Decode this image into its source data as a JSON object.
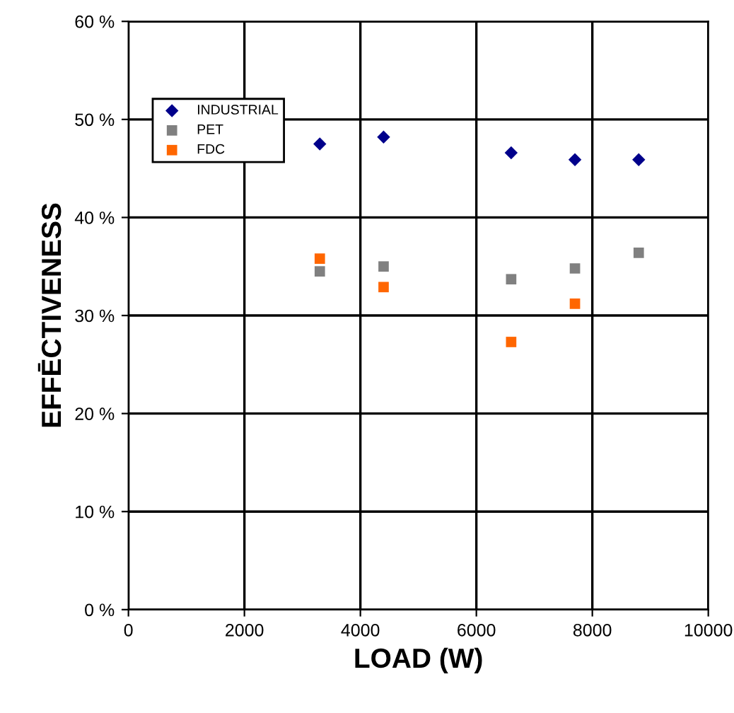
{
  "chart_data": {
    "type": "scatter",
    "xlabel": "LOAD (W)",
    "ylabel": "EFFĒCTIVENESS",
    "xlim": [
      0,
      10000
    ],
    "xticks": [
      0,
      2000,
      4000,
      6000,
      8000,
      10000
    ],
    "ylim": [
      0,
      60
    ],
    "yticks": [
      {
        "value": 0,
        "label": "0 %"
      },
      {
        "value": 10,
        "label": "10 %"
      },
      {
        "value": 20,
        "label": "20 %"
      },
      {
        "value": 30,
        "label": "30 %"
      },
      {
        "value": 40,
        "label": "40 %"
      },
      {
        "value": 50,
        "label": "50 %"
      },
      {
        "value": 60,
        "label": "60 %"
      }
    ],
    "grid": true,
    "legend": "top left",
    "series": [
      {
        "name": "INDUSTRIAL",
        "color": "#00008b",
        "marker": "diamond",
        "x": [
          3300,
          4400,
          6600,
          7700,
          8800
        ],
        "values": [
          47.5,
          48.2,
          46.6,
          45.9,
          45.9
        ]
      },
      {
        "name": "PET",
        "color": "#808080",
        "marker": "square",
        "x": [
          3300,
          4400,
          6600,
          7700,
          8800
        ],
        "values": [
          34.5,
          35.0,
          33.7,
          34.8,
          36.4
        ]
      },
      {
        "name": "FDC",
        "color": "#ff6600",
        "marker": "square",
        "x": [
          3300,
          4400,
          6600,
          7700
        ],
        "values": [
          35.8,
          32.9,
          27.3,
          31.2
        ]
      }
    ]
  }
}
